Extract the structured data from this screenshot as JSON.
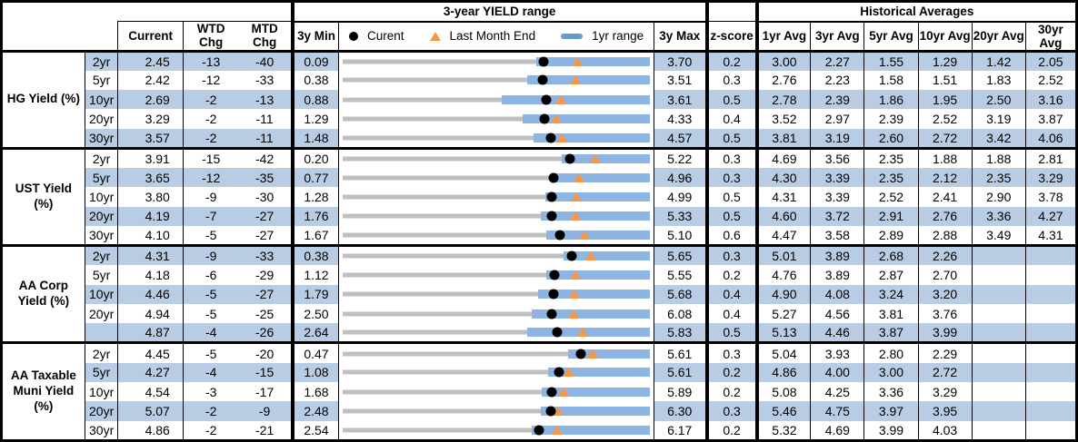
{
  "table": {
    "header": {
      "range_title": "3-year YIELD range",
      "hist_title": "Historical Averages",
      "current": "Current",
      "wtd": "WTD Chg",
      "mtd": "MTD Chg",
      "min3y": "3y Min",
      "max3y": "3y Max",
      "zscore": "z-score",
      "avg_cols": [
        "1yr Avg",
        "3yr Avg",
        "5yr Avg",
        "10yr Avg",
        "20yr Avg",
        "30yr Avg"
      ],
      "legend": {
        "current": "Curent",
        "last_month_end": "Last Month End",
        "one_yr_range": "1yr range"
      }
    },
    "colors": {
      "stripe": "#B8CCE4",
      "range_bar": "#8DB4E2",
      "track": "#BFBFBF",
      "triangle": "#F79646",
      "dot": "#000000"
    }
  },
  "chart_data": {
    "type": "table",
    "title": "3-year YIELD range",
    "legend": [
      "Curent",
      "Last Month End",
      "1yr range"
    ],
    "note": "Each row is a bullet chart from 3y Min to 3y Max; blue bar = 1yr range (yr1_lo to 3y Max), black dot = Current, orange triangle = Last Month End.",
    "groups": [
      {
        "label": "HG Yield (%)",
        "rows": [
          {
            "tenor": "2yr",
            "current": "2.45",
            "wtd_chg": "-13",
            "mtd_chg": "-40",
            "min_3y": "0.09",
            "max_3y": "3.70",
            "z_score": "0.2",
            "last_month_end": 2.85,
            "yr1_lo": 2.37,
            "avgs": [
              "3.00",
              "2.27",
              "1.55",
              "1.29",
              "1.42",
              "2.05"
            ]
          },
          {
            "tenor": "5yr",
            "current": "2.42",
            "wtd_chg": "-12",
            "mtd_chg": "-33",
            "min_3y": "0.38",
            "max_3y": "3.51",
            "z_score": "0.3",
            "last_month_end": 2.75,
            "yr1_lo": 2.26,
            "avgs": [
              "2.76",
              "2.23",
              "1.58",
              "1.51",
              "1.83",
              "2.52"
            ]
          },
          {
            "tenor": "10yr",
            "current": "2.69",
            "wtd_chg": "-2",
            "mtd_chg": "-13",
            "min_3y": "0.88",
            "max_3y": "3.61",
            "z_score": "0.5",
            "last_month_end": 2.82,
            "yr1_lo": 2.29,
            "avgs": [
              "2.78",
              "2.39",
              "1.86",
              "1.95",
              "2.50",
              "3.16"
            ]
          },
          {
            "tenor": "20yr",
            "current": "3.29",
            "wtd_chg": "-2",
            "mtd_chg": "-11",
            "min_3y": "1.29",
            "max_3y": "4.33",
            "z_score": "0.4",
            "last_month_end": 3.4,
            "yr1_lo": 3.07,
            "avgs": [
              "3.52",
              "2.97",
              "2.39",
              "2.52",
              "3.19",
              "3.87"
            ]
          },
          {
            "tenor": "30yr",
            "current": "3.57",
            "wtd_chg": "-2",
            "mtd_chg": "-11",
            "min_3y": "1.48",
            "max_3y": "4.57",
            "z_score": "0.5",
            "last_month_end": 3.68,
            "yr1_lo": 3.4,
            "avgs": [
              "3.81",
              "3.19",
              "2.60",
              "2.72",
              "3.42",
              "4.06"
            ]
          }
        ]
      },
      {
        "label": "UST Yield (%)",
        "rows": [
          {
            "tenor": "2yr",
            "current": "3.91",
            "wtd_chg": "-15",
            "mtd_chg": "-42",
            "min_3y": "0.20",
            "max_3y": "5.22",
            "z_score": "0.3",
            "last_month_end": 4.33,
            "yr1_lo": 3.78,
            "avgs": [
              "4.69",
              "3.56",
              "2.35",
              "1.88",
              "1.88",
              "2.81"
            ]
          },
          {
            "tenor": "5yr",
            "current": "3.65",
            "wtd_chg": "-12",
            "mtd_chg": "-35",
            "min_3y": "0.77",
            "max_3y": "4.96",
            "z_score": "0.3",
            "last_month_end": 4.0,
            "yr1_lo": 3.61,
            "avgs": [
              "4.30",
              "3.39",
              "2.35",
              "2.12",
              "2.35",
              "3.29"
            ]
          },
          {
            "tenor": "10yr",
            "current": "3.80",
            "wtd_chg": "-9",
            "mtd_chg": "-30",
            "min_3y": "1.28",
            "max_3y": "4.99",
            "z_score": "0.5",
            "last_month_end": 4.1,
            "yr1_lo": 3.73,
            "avgs": [
              "4.31",
              "3.39",
              "2.52",
              "2.41",
              "2.90",
              "3.78"
            ]
          },
          {
            "tenor": "20yr",
            "current": "4.19",
            "wtd_chg": "-7",
            "mtd_chg": "-27",
            "min_3y": "1.76",
            "max_3y": "5.33",
            "z_score": "0.5",
            "last_month_end": 4.46,
            "yr1_lo": 4.06,
            "avgs": [
              "4.60",
              "3.72",
              "2.91",
              "2.76",
              "3.36",
              "4.27"
            ]
          },
          {
            "tenor": "30yr",
            "current": "4.10",
            "wtd_chg": "-5",
            "mtd_chg": "-27",
            "min_3y": "1.67",
            "max_3y": "5.10",
            "z_score": "0.6",
            "last_month_end": 4.37,
            "yr1_lo": 3.94,
            "avgs": [
              "4.47",
              "3.58",
              "2.89",
              "2.88",
              "3.49",
              "4.31"
            ]
          }
        ]
      },
      {
        "label": "AA Corp Yield (%)",
        "rows": [
          {
            "tenor": "2yr",
            "current": "4.31",
            "wtd_chg": "-9",
            "mtd_chg": "-33",
            "min_3y": "0.38",
            "max_3y": "5.65",
            "z_score": "0.3",
            "last_month_end": 4.64,
            "yr1_lo": 4.17,
            "avgs": [
              "5.01",
              "3.89",
              "2.68",
              "2.26",
              "",
              ""
            ]
          },
          {
            "tenor": "5yr",
            "current": "4.18",
            "wtd_chg": "-6",
            "mtd_chg": "-29",
            "min_3y": "1.12",
            "max_3y": "5.55",
            "z_score": "0.2",
            "last_month_end": 4.47,
            "yr1_lo": 4.06,
            "avgs": [
              "4.76",
              "3.89",
              "2.87",
              "2.70",
              "",
              ""
            ]
          },
          {
            "tenor": "10yr",
            "current": "4.46",
            "wtd_chg": "-5",
            "mtd_chg": "-27",
            "min_3y": "1.79",
            "max_3y": "5.68",
            "z_score": "0.4",
            "last_month_end": 4.73,
            "yr1_lo": 4.27,
            "avgs": [
              "4.90",
              "4.08",
              "3.24",
              "3.20",
              "",
              ""
            ]
          },
          {
            "tenor": "20yr",
            "current": "4.94",
            "wtd_chg": "-5",
            "mtd_chg": "-25",
            "min_3y": "2.50",
            "max_3y": "6.08",
            "z_score": "0.4",
            "last_month_end": 5.19,
            "yr1_lo": 4.7,
            "avgs": [
              "5.27",
              "4.56",
              "3.81",
              "3.76",
              "",
              ""
            ]
          },
          {
            "tenor": "",
            "current": "4.87",
            "wtd_chg": "-4",
            "mtd_chg": "-26",
            "min_3y": "2.64",
            "max_3y": "5.83",
            "z_score": "0.5",
            "last_month_end": 5.13,
            "yr1_lo": 4.56,
            "avgs": [
              "5.13",
              "4.46",
              "3.87",
              "3.99",
              "",
              ""
            ]
          }
        ]
      },
      {
        "label": "AA Taxable Muni Yield (%)",
        "rows": [
          {
            "tenor": "2yr",
            "current": "4.45",
            "wtd_chg": "-5",
            "mtd_chg": "-20",
            "min_3y": "0.47",
            "max_3y": "5.61",
            "z_score": "0.3",
            "last_month_end": 4.65,
            "yr1_lo": 4.25,
            "avgs": [
              "5.04",
              "3.93",
              "2.80",
              "2.29",
              "",
              ""
            ]
          },
          {
            "tenor": "5yr",
            "current": "4.27",
            "wtd_chg": "-4",
            "mtd_chg": "-15",
            "min_3y": "1.08",
            "max_3y": "5.61",
            "z_score": "0.2",
            "last_month_end": 4.42,
            "yr1_lo": 4.11,
            "avgs": [
              "4.86",
              "4.00",
              "3.00",
              "2.72",
              "",
              ""
            ]
          },
          {
            "tenor": "10yr",
            "current": "4.54",
            "wtd_chg": "-3",
            "mtd_chg": "-17",
            "min_3y": "1.68",
            "max_3y": "5.89",
            "z_score": "0.2",
            "last_month_end": 4.71,
            "yr1_lo": 4.41,
            "avgs": [
              "5.08",
              "4.25",
              "3.36",
              "3.29",
              "",
              ""
            ]
          },
          {
            "tenor": "20yr",
            "current": "5.07",
            "wtd_chg": "-2",
            "mtd_chg": "-9",
            "min_3y": "2.48",
            "max_3y": "6.30",
            "z_score": "0.3",
            "last_month_end": 5.16,
            "yr1_lo": 4.94,
            "avgs": [
              "5.46",
              "4.75",
              "3.97",
              "3.95",
              "",
              ""
            ]
          },
          {
            "tenor": "30yr",
            "current": "4.86",
            "wtd_chg": "-2",
            "mtd_chg": "-21",
            "min_3y": "2.54",
            "max_3y": "6.17",
            "z_score": "0.2",
            "last_month_end": 5.07,
            "yr1_lo": 4.77,
            "avgs": [
              "5.32",
              "4.69",
              "3.99",
              "4.03",
              "",
              ""
            ]
          }
        ]
      }
    ]
  }
}
